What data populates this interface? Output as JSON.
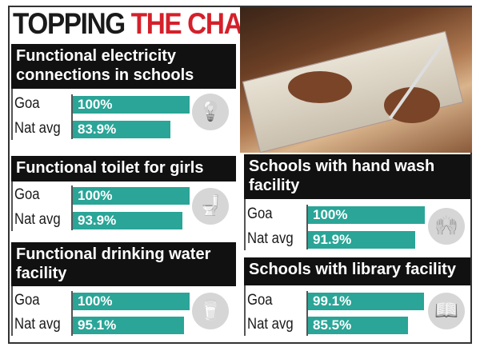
{
  "title": {
    "part1": "TOPPING",
    "part2": "THE CHARTS"
  },
  "colors": {
    "bar": "#2aa597",
    "accent": "#d4202a",
    "header": "#111111"
  },
  "chart_data": [
    {
      "type": "bar",
      "title": "Functional electricity connections in schools",
      "categories": [
        "Goa",
        "Nat avg"
      ],
      "values": [
        100,
        83.9
      ],
      "labels": [
        "100%",
        "83.9%"
      ],
      "icon": "lightbulb-icon"
    },
    {
      "type": "bar",
      "title": "Functional toilet for girls",
      "categories": [
        "Goa",
        "Nat avg"
      ],
      "values": [
        100,
        93.9
      ],
      "labels": [
        "100%",
        "93.9%"
      ],
      "icon": "toilet-icon"
    },
    {
      "type": "bar",
      "title": "Functional drinking water facility",
      "categories": [
        "Goa",
        "Nat avg"
      ],
      "values": [
        100,
        95.1
      ],
      "labels": [
        "100%",
        "95.1%"
      ],
      "icon": "water-glass-icon"
    },
    {
      "type": "bar",
      "title": "Schools with hand wash facility",
      "categories": [
        "Goa",
        "Nat avg"
      ],
      "values": [
        100,
        91.9
      ],
      "labels": [
        "100%",
        "91.9%"
      ],
      "icon": "hand-wash-icon"
    },
    {
      "type": "bar",
      "title": "Schools with library facility",
      "categories": [
        "Goa",
        "Nat avg"
      ],
      "values": [
        99.1,
        85.5
      ],
      "labels": [
        "99.1%",
        "85.5%"
      ],
      "icon": "book-icon"
    }
  ]
}
